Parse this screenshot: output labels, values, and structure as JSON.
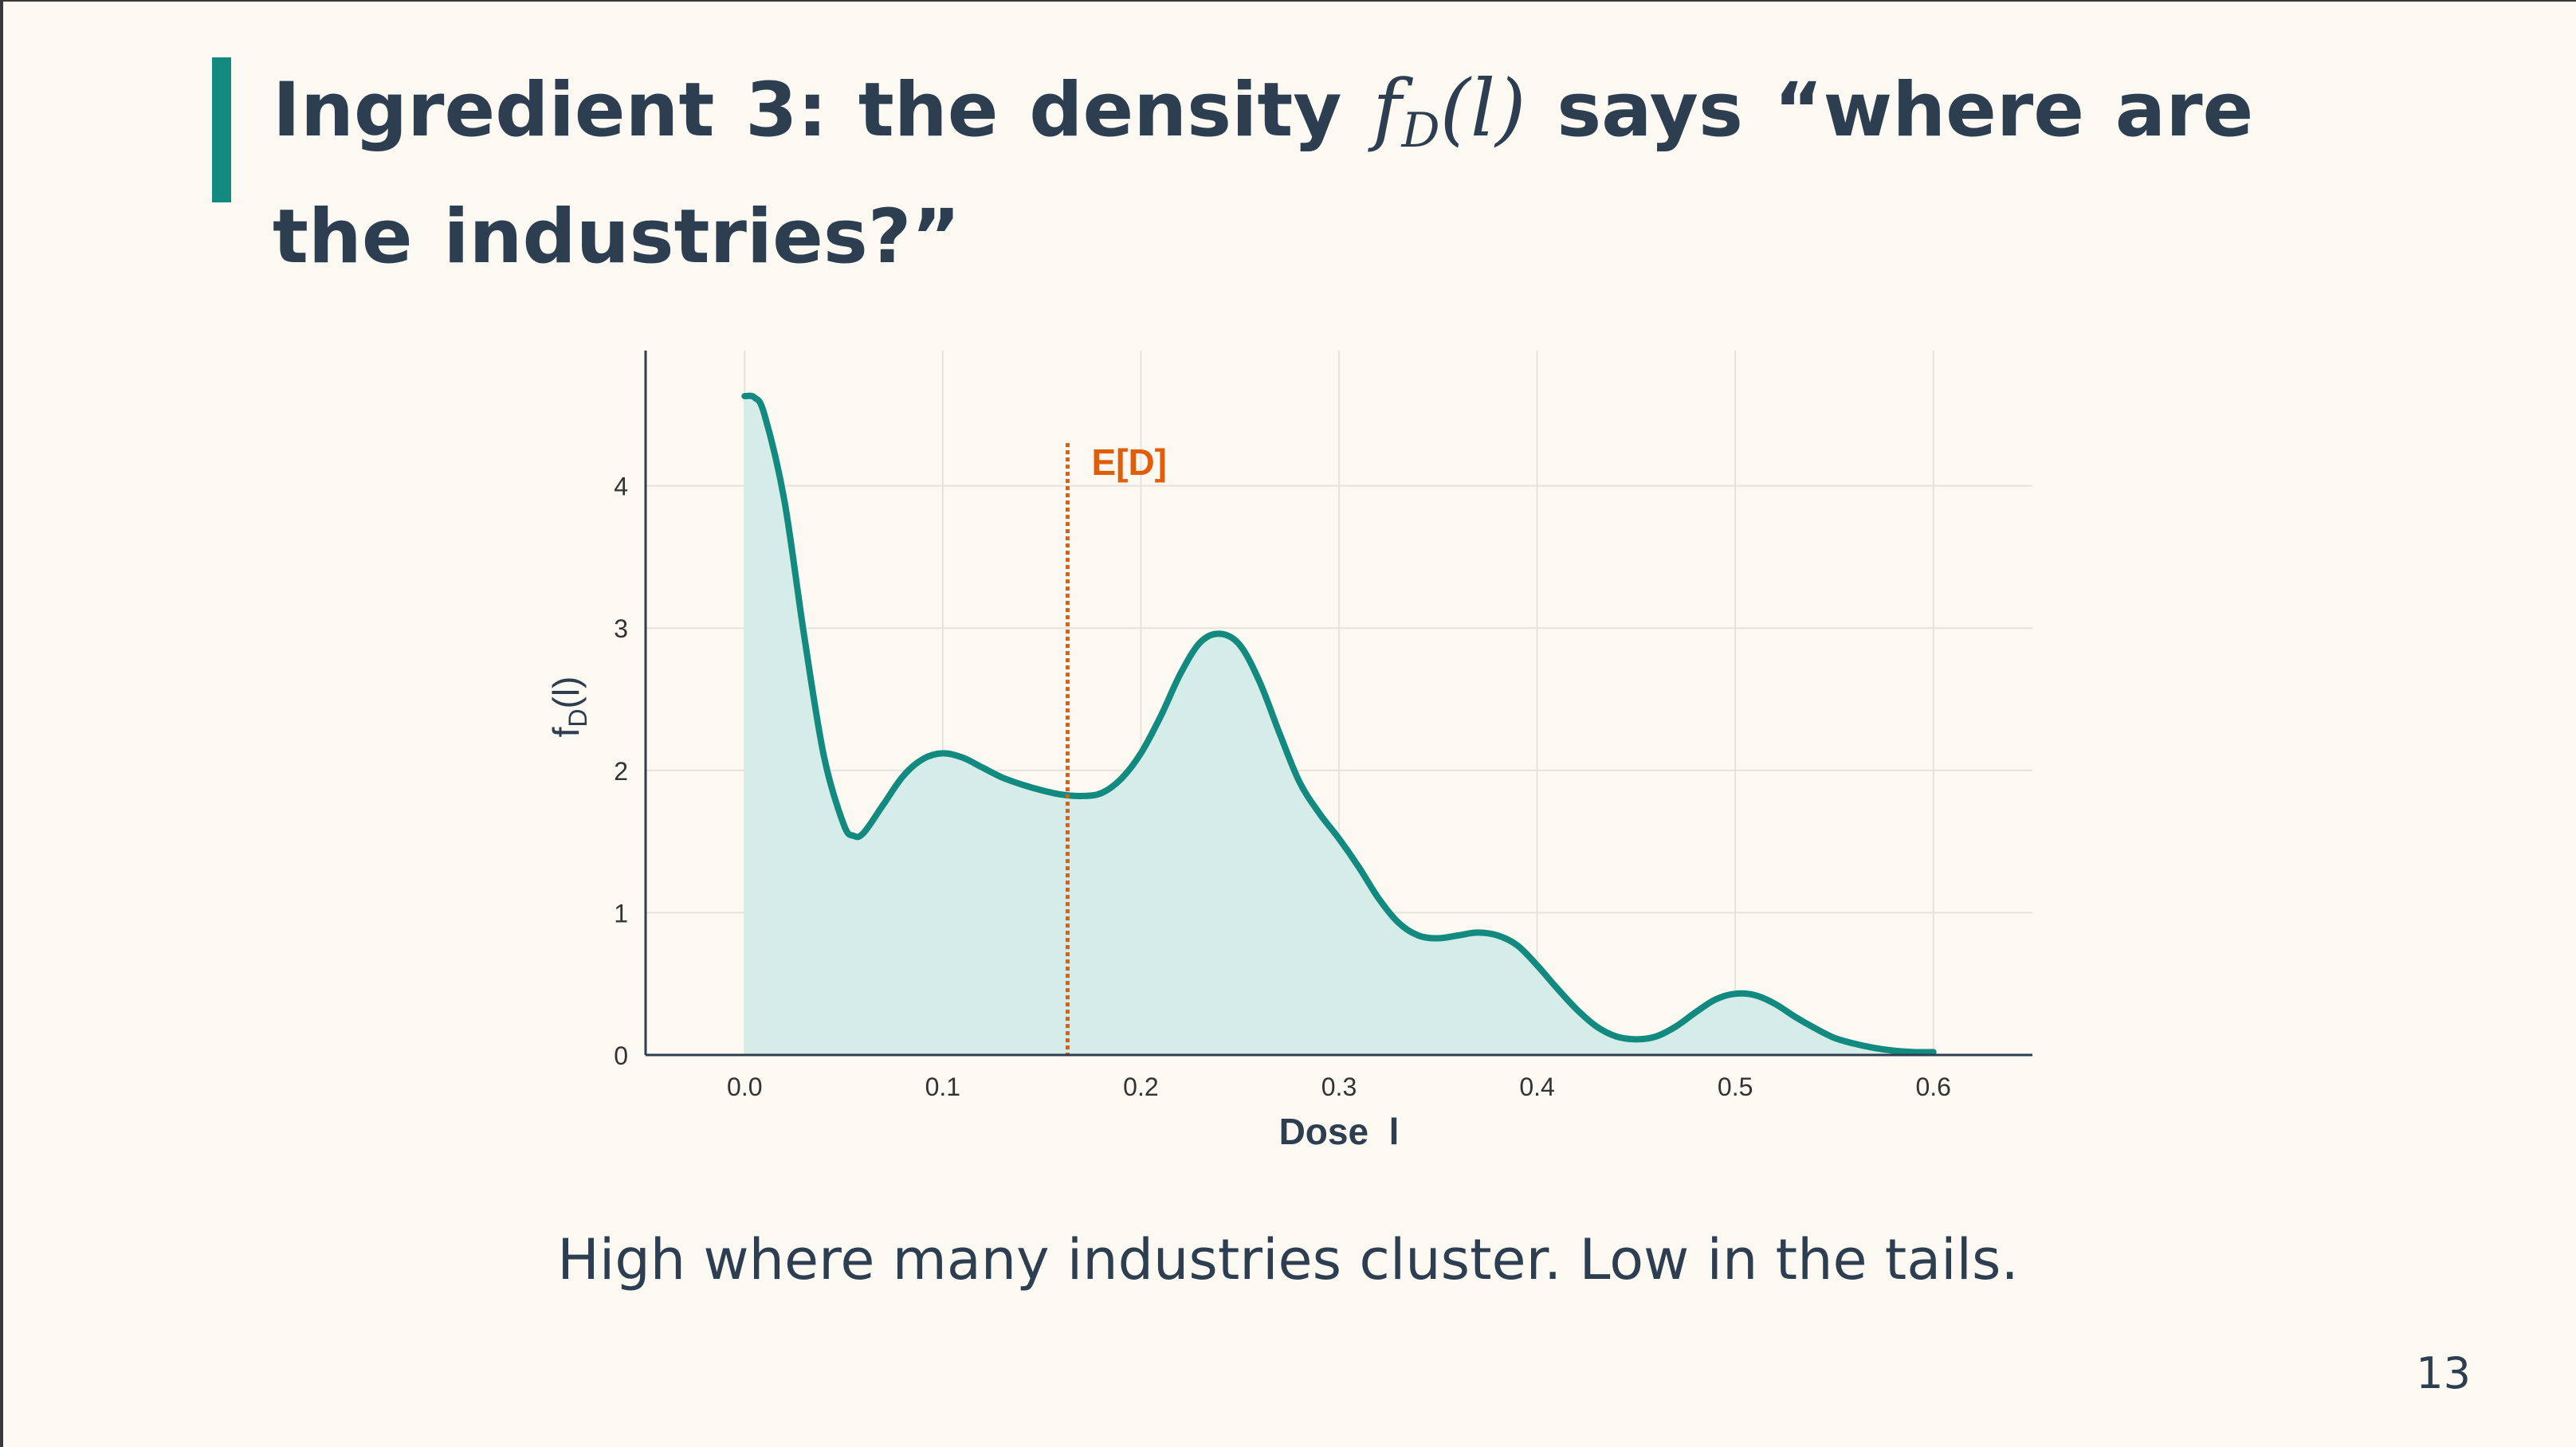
{
  "slide": {
    "title_prefix": "Ingredient 3: the density ",
    "title_math_f": "f",
    "title_math_sub": "D",
    "title_math_arg": "(l)",
    "title_suffix": " says “where are the industries?”",
    "caption": "High where many industries cluster. Low in the tails.",
    "page_number": "13"
  },
  "colors": {
    "accent": "#138a80",
    "fill": "#d5ece9",
    "annotation": "#e05d0b",
    "text": "#2c3e50",
    "background": "#fcf8f2"
  },
  "chart_data": {
    "type": "area",
    "xlabel": "Dose  l",
    "ylabel_main": "f",
    "ylabel_sub": "D",
    "ylabel_arg": "(l)",
    "xlim": [
      -0.05,
      0.65
    ],
    "ylim": [
      0,
      4.95
    ],
    "x_ticks": [
      0.0,
      0.1,
      0.2,
      0.3,
      0.4,
      0.5,
      0.6
    ],
    "x_tick_labels": [
      "0.0",
      "0.1",
      "0.2",
      "0.3",
      "0.4",
      "0.5",
      "0.6"
    ],
    "y_ticks": [
      0,
      1,
      2,
      3,
      4
    ],
    "y_tick_labels": [
      "0",
      "1",
      "2",
      "3",
      "4"
    ],
    "grid": true,
    "series": [
      {
        "x": [
          0.0,
          0.005,
          0.01,
          0.02,
          0.03,
          0.04,
          0.05,
          0.055,
          0.06,
          0.07,
          0.08,
          0.09,
          0.1,
          0.11,
          0.12,
          0.13,
          0.14,
          0.15,
          0.16,
          0.17,
          0.18,
          0.19,
          0.2,
          0.21,
          0.22,
          0.23,
          0.24,
          0.25,
          0.26,
          0.27,
          0.28,
          0.29,
          0.3,
          0.31,
          0.32,
          0.33,
          0.34,
          0.35,
          0.36,
          0.37,
          0.38,
          0.39,
          0.4,
          0.41,
          0.42,
          0.43,
          0.44,
          0.45,
          0.46,
          0.47,
          0.48,
          0.49,
          0.5,
          0.51,
          0.52,
          0.53,
          0.54,
          0.55,
          0.56,
          0.57,
          0.58,
          0.59,
          0.6
        ],
        "y": [
          4.63,
          4.62,
          4.5,
          3.9,
          2.95,
          2.1,
          1.62,
          1.54,
          1.56,
          1.76,
          1.96,
          2.08,
          2.12,
          2.09,
          2.02,
          1.95,
          1.9,
          1.86,
          1.83,
          1.82,
          1.84,
          1.94,
          2.12,
          2.38,
          2.68,
          2.9,
          2.96,
          2.88,
          2.62,
          2.26,
          1.92,
          1.7,
          1.52,
          1.32,
          1.1,
          0.93,
          0.84,
          0.82,
          0.84,
          0.86,
          0.84,
          0.77,
          0.63,
          0.47,
          0.32,
          0.2,
          0.13,
          0.11,
          0.13,
          0.2,
          0.3,
          0.39,
          0.43,
          0.42,
          0.36,
          0.27,
          0.19,
          0.12,
          0.08,
          0.05,
          0.03,
          0.02,
          0.02
        ]
      }
    ],
    "annotations": [
      {
        "type": "vline",
        "x": 0.163,
        "y_top": 4.3,
        "label": "E[D]"
      }
    ]
  }
}
